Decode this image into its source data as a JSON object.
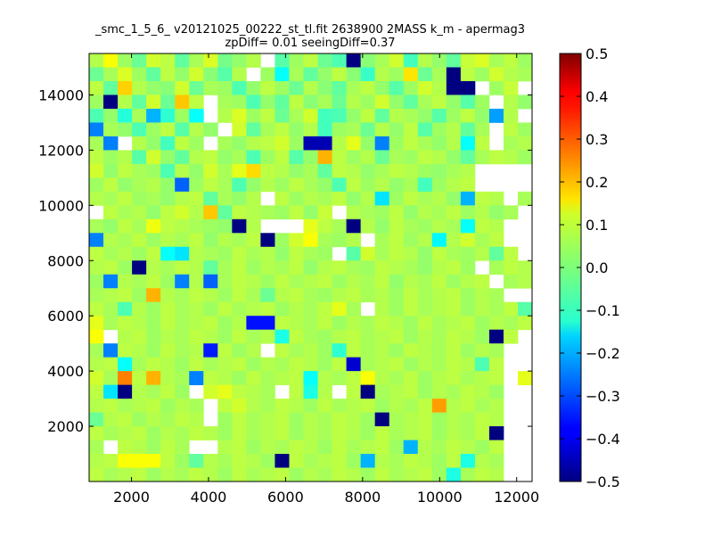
{
  "chart_data": {
    "type": "heatmap",
    "title_line1": "_smc_1_5_6_ v20121025_00222_st_tl.fit 2638900 2MASS k_m - apermag3",
    "title_line2": "zpDiff= 0.01 seeingDiff=0.37",
    "xlabel": "",
    "ylabel": "",
    "xlim": [
      900,
      12400
    ],
    "ylim": [
      0,
      15500
    ],
    "x_ticks": [
      2000,
      4000,
      6000,
      8000,
      10000,
      12000
    ],
    "y_ticks": [
      2000,
      4000,
      6000,
      8000,
      10000,
      12000,
      14000
    ],
    "x_tick_labels": [
      "2000",
      "4000",
      "6000",
      "8000",
      "10000",
      "12000"
    ],
    "y_tick_labels": [
      "2000",
      "4000",
      "6000",
      "8000",
      "10000",
      "12000",
      "14000"
    ],
    "colorbar": {
      "colormap": "jet",
      "vmin": -0.5,
      "vmax": 0.5,
      "ticks": [
        0.5,
        0.4,
        0.3,
        0.2,
        0.1,
        0.0,
        -0.1,
        -0.2,
        -0.3,
        -0.4,
        -0.5
      ],
      "tick_labels": [
        "0.5",
        "0.4",
        "0.3",
        "0.2",
        "0.1",
        "0.0",
        "−0.1",
        "−0.2",
        "−0.3",
        "−0.4",
        "−0.5"
      ]
    },
    "grid": false,
    "cols": 31,
    "rows": 31,
    "bin_x0": 900,
    "bin_width": 371,
    "bin_y0": 0,
    "bin_height": 500,
    "values_note": "rows listed top (y=15500) to bottom (y=0); null = empty bin",
    "values": [
      [
        0.05,
        0.12,
        0.03,
        -0.02,
        0.08,
        0.06,
        -0.03,
        0.04,
        0.09,
        -0.01,
        0.02,
        0.05,
        null,
        -0.04,
        0.03,
        0.06,
        -0.02,
        -0.05,
        -0.5,
        0.01,
        0.04,
        0.08,
        -0.06,
        0.05,
        0.02,
        -0.03,
        0.07,
        0.09,
        0.04,
        0.06,
        0.03
      ],
      [
        -0.02,
        0.04,
        0.09,
        0.03,
        -0.03,
        0.06,
        0.02,
        0.08,
        0.01,
        -0.04,
        0.05,
        null,
        0.03,
        -0.12,
        0.04,
        -0.03,
        0.02,
        0.06,
        0.01,
        -0.07,
        0.05,
        0.03,
        0.15,
        -0.02,
        0.04,
        -0.5,
        0.06,
        0.03,
        0.08,
        0.05,
        0.04
      ],
      [
        0.06,
        -0.03,
        0.17,
        0.05,
        0.02,
        0.01,
        0.08,
        -0.02,
        0.04,
        0.03,
        -0.05,
        0.02,
        0.06,
        0.03,
        -0.02,
        0.05,
        0.01,
        -0.03,
        0.04,
        0.06,
        0.02,
        -0.04,
        0.03,
        0.08,
        0.05,
        -0.5,
        -0.5,
        null,
        0.03,
        0.07,
        null
      ],
      [
        0.03,
        -0.5,
        0.05,
        -0.03,
        0.08,
        -0.02,
        0.18,
        0.06,
        null,
        0.04,
        0.03,
        -0.05,
        0.02,
        -0.03,
        0.06,
        0.01,
        0.04,
        -0.02,
        0.05,
        0.03,
        0.08,
        0.02,
        -0.03,
        0.04,
        0.06,
        0.02,
        -0.04,
        0.03,
        null,
        0.05,
        0.02
      ],
      [
        -0.05,
        0.02,
        -0.09,
        0.04,
        -0.2,
        -0.08,
        0.03,
        -0.12,
        null,
        0.05,
        0.09,
        0.03,
        0.06,
        -0.02,
        0.04,
        0.08,
        -0.06,
        -0.05,
        0.02,
        0.06,
        -0.03,
        0.05,
        0.04,
        0.02,
        -0.04,
        0.03,
        0.06,
        0.02,
        -0.22,
        0.05,
        null
      ],
      [
        -0.25,
        0.04,
        0.02,
        -0.05,
        0.03,
        0.06,
        -0.04,
        0.05,
        0.02,
        null,
        0.08,
        -0.03,
        0.04,
        0.06,
        0.02,
        0.05,
        -0.06,
        0.03,
        0.04,
        -0.02,
        0.05,
        0.02,
        0.06,
        -0.04,
        0.03,
        0.05,
        -0.03,
        0.04,
        null,
        0.06,
        0.03
      ],
      [
        0.04,
        -0.25,
        null,
        0.05,
        0.02,
        -0.06,
        0.06,
        0.03,
        null,
        0.04,
        0.02,
        0.05,
        0.06,
        0.08,
        0.03,
        -0.45,
        -0.45,
        0.05,
        0.1,
        0.02,
        -0.25,
        0.03,
        0.06,
        0.04,
        0.02,
        0.05,
        -0.12,
        0.06,
        null,
        0.04,
        0.05
      ],
      [
        0.06,
        0.03,
        0.05,
        -0.04,
        0.08,
        0.02,
        -0.03,
        0.05,
        0.06,
        0.02,
        0.04,
        -0.05,
        0.03,
        0.06,
        -0.04,
        0.02,
        0.2,
        0.06,
        0.03,
        0.05,
        -0.02,
        0.04,
        0.03,
        0.06,
        0.05,
        0.02,
        -0.03,
        0.04,
        0.06,
        0.05,
        0.03
      ],
      [
        0.08,
        0.02,
        0.06,
        0.04,
        0.03,
        -0.05,
        0.05,
        0.02,
        0.08,
        0.04,
        0.1,
        0.16,
        0.06,
        0.05,
        0.02,
        0.04,
        -0.03,
        0.06,
        0.05,
        0.02,
        0.04,
        0.06,
        0.05,
        0.03,
        0.02,
        0.04,
        0.05,
        null,
        null,
        null,
        null
      ],
      [
        0.03,
        0.06,
        0.02,
        0.04,
        0.05,
        0.02,
        -0.28,
        0.03,
        0.06,
        0.04,
        -0.05,
        0.02,
        0.05,
        0.03,
        0.06,
        0.04,
        0.02,
        -0.05,
        0.06,
        0.03,
        0.05,
        0.02,
        0.04,
        -0.06,
        0.03,
        0.05,
        0.06,
        null,
        null,
        null,
        null
      ],
      [
        0.05,
        0.04,
        0.06,
        0.03,
        0.04,
        0.02,
        0.05,
        0.06,
        -0.03,
        0.04,
        0.02,
        0.05,
        null,
        0.06,
        0.03,
        0.05,
        0.04,
        0.06,
        0.02,
        0.05,
        -0.15,
        0.03,
        0.06,
        0.04,
        0.05,
        0.02,
        -0.2,
        0.06,
        0.05,
        null,
        0.04
      ],
      [
        null,
        0.06,
        0.04,
        0.05,
        0.02,
        0.06,
        0.08,
        0.05,
        0.18,
        -0.03,
        0.06,
        0.05,
        0.04,
        0.03,
        0.06,
        0.02,
        0.07,
        null,
        0.05,
        0.04,
        0.03,
        0.06,
        0.02,
        0.05,
        0.04,
        0.06,
        0.03,
        0.05,
        0.02,
        0.04,
        null
      ],
      [
        0.04,
        0.02,
        0.06,
        0.04,
        0.11,
        0.06,
        0.05,
        0.04,
        0.03,
        0.02,
        -0.5,
        0.05,
        null,
        null,
        null,
        0.1,
        0.06,
        0.04,
        -0.5,
        0.05,
        0.02,
        0.06,
        0.04,
        0.03,
        0.05,
        0.04,
        -0.12,
        0.06,
        0.05,
        null,
        null
      ],
      [
        -0.25,
        0.05,
        0.04,
        0.06,
        0.03,
        0.05,
        0.04,
        0.06,
        0.02,
        0.05,
        0.04,
        0.06,
        -0.5,
        0.03,
        0.08,
        0.12,
        0.04,
        0.03,
        0.05,
        null,
        0.04,
        0.06,
        0.03,
        0.05,
        -0.13,
        0.05,
        0.08,
        0.04,
        0.06,
        null,
        null
      ],
      [
        0.06,
        0.04,
        0.05,
        0.03,
        0.06,
        -0.12,
        -0.15,
        0.05,
        0.04,
        0.03,
        0.06,
        0.04,
        0.05,
        0.02,
        0.06,
        0.04,
        0.03,
        null,
        -0.04,
        0.08,
        0.04,
        0.06,
        0.05,
        0.02,
        0.06,
        0.04,
        0.03,
        0.05,
        -0.03,
        0.06,
        null
      ],
      [
        0.05,
        0.06,
        0.03,
        -0.5,
        0.05,
        0.04,
        0.06,
        0.05,
        -0.03,
        0.04,
        0.06,
        0.03,
        0.05,
        0.04,
        0.06,
        0.02,
        0.05,
        0.06,
        0.04,
        0.03,
        0.06,
        0.05,
        0.04,
        0.02,
        0.05,
        0.06,
        0.03,
        null,
        0.04,
        0.06,
        0.05
      ],
      [
        0.03,
        -0.25,
        0.05,
        0.04,
        0.06,
        0.03,
        -0.25,
        0.05,
        -0.28,
        0.04,
        0.06,
        0.05,
        0.03,
        0.06,
        0.04,
        0.05,
        0.06,
        0.03,
        0.05,
        0.04,
        0.06,
        0.02,
        0.05,
        0.04,
        0.06,
        0.03,
        0.05,
        0.06,
        null,
        0.04,
        0.05
      ],
      [
        0.04,
        0.05,
        0.06,
        0.03,
        0.2,
        0.05,
        0.04,
        0.06,
        0.05,
        0.03,
        0.06,
        0.04,
        -0.02,
        0.05,
        0.06,
        0.04,
        0.03,
        0.05,
        0.06,
        0.04,
        0.05,
        0.03,
        0.06,
        0.04,
        0.05,
        0.06,
        0.03,
        0.05,
        0.04,
        null,
        null
      ],
      [
        0.06,
        0.04,
        -0.05,
        0.05,
        0.03,
        0.06,
        0.04,
        0.05,
        0.03,
        0.06,
        0.04,
        0.05,
        0.06,
        0.03,
        0.05,
        0.04,
        0.06,
        0.1,
        0.04,
        null,
        0.05,
        0.03,
        0.06,
        0.04,
        0.05,
        0.06,
        0.03,
        0.05,
        0.04,
        0.06,
        -0.04
      ],
      [
        0.1,
        0.04,
        0.06,
        0.05,
        0.03,
        0.06,
        0.04,
        0.05,
        0.06,
        0.03,
        0.05,
        -0.36,
        -0.36,
        0.06,
        0.05,
        0.04,
        0.06,
        0.03,
        0.05,
        0.04,
        0.06,
        0.05,
        0.03,
        0.06,
        0.04,
        0.05,
        0.06,
        0.03,
        0.05,
        0.04,
        0.06
      ],
      [
        0.12,
        null,
        0.05,
        0.06,
        0.03,
        0.05,
        0.04,
        0.06,
        0.05,
        0.03,
        0.06,
        0.04,
        0.05,
        -0.1,
        0.06,
        0.04,
        0.03,
        0.05,
        0.06,
        0.04,
        0.05,
        0.06,
        0.03,
        0.05,
        0.04,
        0.06,
        0.05,
        0.03,
        -0.5,
        0.06,
        null
      ],
      [
        0.04,
        -0.25,
        0.06,
        0.05,
        0.03,
        0.06,
        0.04,
        0.05,
        -0.35,
        0.06,
        0.03,
        0.05,
        null,
        0.06,
        0.04,
        0.05,
        0.03,
        -0.08,
        0.06,
        0.04,
        0.05,
        0.03,
        0.06,
        0.05,
        0.04,
        0.06,
        0.03,
        0.05,
        0.04,
        null,
        null
      ],
      [
        0.05,
        0.06,
        -0.12,
        0.04,
        0.06,
        0.05,
        0.03,
        0.06,
        0.04,
        0.05,
        0.06,
        0.03,
        0.05,
        0.04,
        0.06,
        0.05,
        0.03,
        0.06,
        -0.42,
        0.04,
        0.05,
        0.06,
        0.03,
        0.05,
        0.04,
        0.06,
        0.05,
        -0.05,
        0.06,
        null,
        null
      ],
      [
        0.08,
        0.04,
        0.25,
        0.06,
        0.2,
        0.05,
        0.04,
        -0.25,
        0.06,
        0.05,
        0.03,
        0.06,
        0.04,
        0.05,
        0.06,
        -0.12,
        0.05,
        0.04,
        0.06,
        0.12,
        0.05,
        0.04,
        0.06,
        0.03,
        0.05,
        0.06,
        0.04,
        0.05,
        0.06,
        null,
        0.1
      ],
      [
        0.06,
        -0.15,
        -0.5,
        0.05,
        0.04,
        0.06,
        0.03,
        null,
        0.08,
        0.1,
        0.06,
        0.05,
        0.04,
        null,
        0.06,
        -0.1,
        0.05,
        null,
        0.06,
        -0.5,
        0.04,
        0.05,
        0.06,
        0.03,
        0.05,
        0.04,
        0.06,
        0.05,
        0.03,
        null,
        null
      ],
      [
        0.05,
        0.06,
        0.04,
        0.05,
        0.06,
        0.03,
        0.05,
        0.04,
        null,
        0.06,
        0.08,
        0.05,
        0.04,
        0.06,
        0.05,
        0.03,
        0.06,
        0.04,
        0.05,
        0.06,
        0.03,
        0.05,
        0.04,
        0.06,
        0.22,
        0.05,
        0.06,
        0.04,
        0.05,
        null,
        null
      ],
      [
        -0.02,
        0.05,
        0.06,
        0.03,
        0.05,
        0.04,
        0.06,
        0.05,
        null,
        0.03,
        0.06,
        0.04,
        0.05,
        0.06,
        0.03,
        0.05,
        0.04,
        0.06,
        0.05,
        0.03,
        -0.5,
        0.04,
        0.05,
        0.06,
        0.03,
        0.05,
        0.04,
        0.06,
        0.05,
        null,
        null
      ],
      [
        0.06,
        0.04,
        0.05,
        0.06,
        0.03,
        0.05,
        0.04,
        0.06,
        0.05,
        0.03,
        0.06,
        0.04,
        0.05,
        0.06,
        0.03,
        0.05,
        0.04,
        0.06,
        0.05,
        0.03,
        0.06,
        0.04,
        0.05,
        0.06,
        0.03,
        0.05,
        0.04,
        0.06,
        -0.5,
        null,
        null
      ],
      [
        0.04,
        null,
        0.06,
        0.05,
        0.03,
        0.06,
        0.04,
        null,
        null,
        0.05,
        0.06,
        0.03,
        0.05,
        0.04,
        0.06,
        0.05,
        0.03,
        0.06,
        0.04,
        0.05,
        0.06,
        0.03,
        -0.2,
        0.05,
        0.04,
        0.06,
        0.05,
        0.03,
        0.06,
        null,
        null
      ],
      [
        0.05,
        0.06,
        0.12,
        0.12,
        0.12,
        0.06,
        0.03,
        -0.03,
        0.05,
        0.04,
        0.06,
        0.05,
        0.03,
        -0.5,
        0.06,
        0.04,
        0.05,
        0.06,
        0.03,
        -0.2,
        0.05,
        0.04,
        0.06,
        0.05,
        0.03,
        0.06,
        -0.1,
        0.05,
        0.04,
        null,
        null
      ],
      [
        0.06,
        0.04,
        0.05,
        0.06,
        0.03,
        0.05,
        0.04,
        0.06,
        0.05,
        0.03,
        0.06,
        0.04,
        0.05,
        0.06,
        0.03,
        0.05,
        0.04,
        0.06,
        0.05,
        0.03,
        0.06,
        0.04,
        0.05,
        0.06,
        0.03,
        -0.1,
        0.04,
        0.06,
        0.05,
        null,
        null
      ]
    ]
  }
}
